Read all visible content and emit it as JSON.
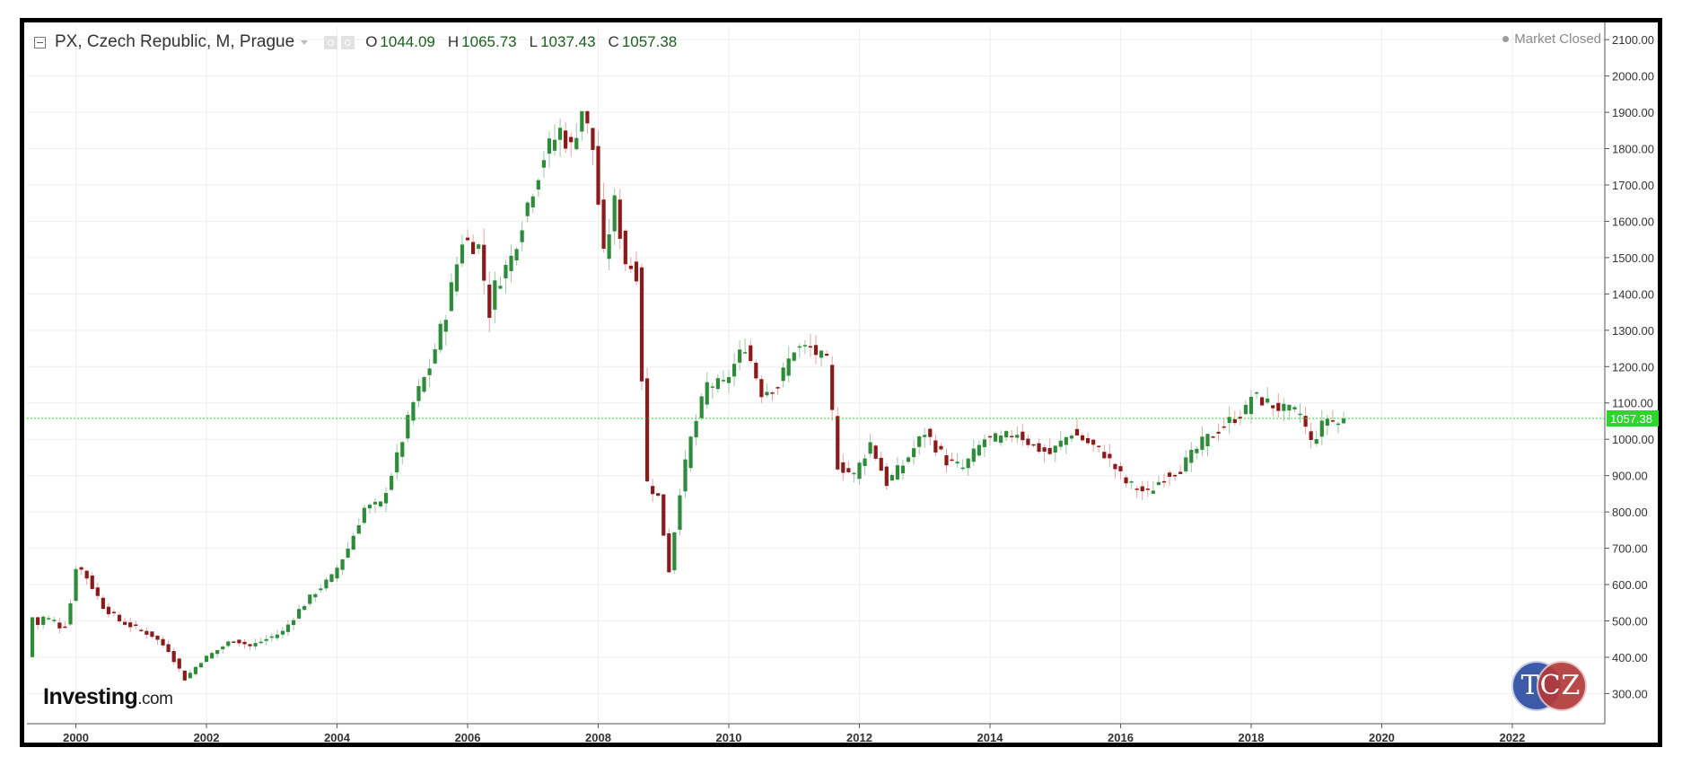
{
  "header": {
    "title": "PX, Czech Republic, M, Prague",
    "ohlc": [
      {
        "label": "O",
        "value": "1044.09"
      },
      {
        "label": "H",
        "value": "1065.73"
      },
      {
        "label": "L",
        "value": "1037.43"
      },
      {
        "label": "C",
        "value": "1057.38"
      }
    ],
    "market_status": "Market Closed"
  },
  "logo": {
    "brand": "Investing",
    "suffix": ".com"
  },
  "watermark": {
    "text": "TCZ"
  },
  "colors": {
    "up": "#2e8b3a",
    "down": "#8b1a1a",
    "last_price": "#2dd52d",
    "grid": "#eeeeee"
  },
  "chart_data": {
    "type": "candlestick",
    "title": "PX, Czech Republic, M, Prague",
    "xlabel": "",
    "ylabel": "",
    "x_ticks": [
      "2000",
      "2002",
      "2004",
      "2006",
      "2008",
      "2010",
      "2012",
      "2014",
      "2016",
      "2018",
      "2020",
      "2022"
    ],
    "y_ticks": [
      "300.00",
      "400.00",
      "500.00",
      "600.00",
      "700.00",
      "800.00",
      "900.00",
      "1000.00",
      "1100.00",
      "1200.00",
      "1300.00",
      "1400.00",
      "1500.00",
      "1600.00",
      "1700.00",
      "1800.00",
      "1900.00",
      "2000.00",
      "2100.00"
    ],
    "xlim": [
      "1999-04",
      "2023-06"
    ],
    "ylim": [
      217,
      2135
    ],
    "last_price": {
      "value": 1057.38,
      "label": "1057.38"
    },
    "grid": true,
    "anchors": [
      [
        "1999-04",
        400
      ],
      [
        "1999-05",
        510
      ],
      [
        "1999-06",
        490
      ],
      [
        "1999-07",
        510
      ],
      [
        "1999-08",
        505
      ],
      [
        "1999-09",
        500
      ],
      [
        "1999-10",
        485
      ],
      [
        "1999-11",
        490
      ],
      [
        "1999-12",
        550
      ],
      [
        "2000-01",
        650
      ],
      [
        "2000-02",
        640
      ],
      [
        "2000-03",
        620
      ],
      [
        "2000-06",
        540
      ],
      [
        "2000-09",
        500
      ],
      [
        "2000-12",
        480
      ],
      [
        "2001-03",
        460
      ],
      [
        "2001-06",
        420
      ],
      [
        "2001-09",
        340
      ],
      [
        "2001-12",
        390
      ],
      [
        "2002-03",
        420
      ],
      [
        "2002-06",
        450
      ],
      [
        "2002-09",
        430
      ],
      [
        "2002-12",
        450
      ],
      [
        "2003-03",
        470
      ],
      [
        "2003-06",
        530
      ],
      [
        "2003-09",
        580
      ],
      [
        "2003-12",
        620
      ],
      [
        "2004-03",
        700
      ],
      [
        "2004-06",
        810
      ],
      [
        "2004-09",
        820
      ],
      [
        "2004-12",
        950
      ],
      [
        "2005-03",
        1100
      ],
      [
        "2005-06",
        1200
      ],
      [
        "2005-09",
        1350
      ],
      [
        "2005-12",
        1550
      ],
      [
        "2006-03",
        1530
      ],
      [
        "2006-05",
        1350
      ],
      [
        "2006-06",
        1420
      ],
      [
        "2006-09",
        1500
      ],
      [
        "2006-12",
        1650
      ],
      [
        "2007-03",
        1780
      ],
      [
        "2007-06",
        1850
      ],
      [
        "2007-08",
        1800
      ],
      [
        "2007-10",
        1910
      ],
      [
        "2007-12",
        1800
      ],
      [
        "2008-02",
        1500
      ],
      [
        "2008-04",
        1650
      ],
      [
        "2008-06",
        1490
      ],
      [
        "2008-08",
        1460
      ],
      [
        "2008-10",
        880
      ],
      [
        "2008-12",
        840
      ],
      [
        "2009-02",
        640
      ],
      [
        "2009-04",
        860
      ],
      [
        "2009-06",
        1000
      ],
      [
        "2009-09",
        1150
      ],
      [
        "2009-12",
        1150
      ],
      [
        "2010-04",
        1260
      ],
      [
        "2010-07",
        1130
      ],
      [
        "2010-10",
        1150
      ],
      [
        "2011-01",
        1250
      ],
      [
        "2011-04",
        1250
      ],
      [
        "2011-07",
        1210
      ],
      [
        "2011-09",
        930
      ],
      [
        "2011-12",
        900
      ],
      [
        "2012-03",
        990
      ],
      [
        "2012-06",
        880
      ],
      [
        "2012-09",
        930
      ],
      [
        "2013-01",
        1020
      ],
      [
        "2013-05",
        940
      ],
      [
        "2013-08",
        920
      ],
      [
        "2013-12",
        1000
      ],
      [
        "2014-03",
        1000
      ],
      [
        "2014-06",
        1020
      ],
      [
        "2014-09",
        980
      ],
      [
        "2014-12",
        960
      ],
      [
        "2015-04",
        1020
      ],
      [
        "2015-07",
        990
      ],
      [
        "2015-10",
        960
      ],
      [
        "2016-02",
        880
      ],
      [
        "2016-06",
        850
      ],
      [
        "2016-09",
        900
      ],
      [
        "2016-12",
        920
      ],
      [
        "2017-04",
        990
      ],
      [
        "2017-08",
        1040
      ],
      [
        "2017-12",
        1080
      ],
      [
        "2018-01",
        1120
      ],
      [
        "2018-04",
        1100
      ],
      [
        "2018-07",
        1080
      ],
      [
        "2018-10",
        1070
      ],
      [
        "2018-12",
        990
      ],
      [
        "2019-03",
        1060
      ],
      [
        "2019-05",
        1044
      ],
      [
        "2019-06",
        1057
      ]
    ]
  }
}
